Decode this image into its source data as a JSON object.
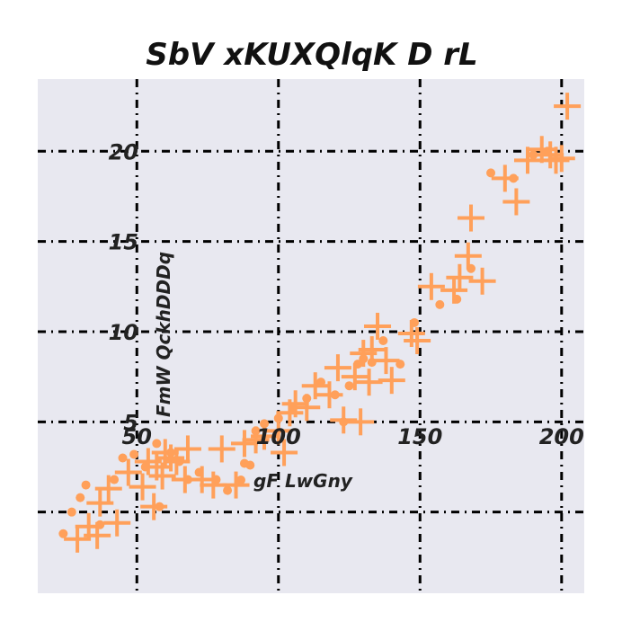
{
  "chart_data": {
    "type": "scatter",
    "title": "SbV xKUXQlqK  D rL",
    "xlabel": "",
    "ylabel": "FmW QckhDDDq",
    "xlim": [
      15,
      208
    ],
    "ylim": [
      -4.5,
      24
    ],
    "xticks": [
      50,
      100,
      150,
      200
    ],
    "yticks": [
      5,
      10,
      15,
      20
    ],
    "xtick_labels": [
      "50",
      "100",
      "150",
      "200"
    ],
    "ytick_labels": [
      "5",
      "10",
      "15",
      "20"
    ],
    "grid": true,
    "legend": {
      "placement": "center",
      "entries": [
        "gF LwGny"
      ]
    },
    "colors": {
      "series": "#FFA05A",
      "background": "#E8E8F0",
      "grid": "#000000"
    },
    "series": [
      {
        "name": "gF LwGny",
        "marker": "dot",
        "x": [
          24,
          27,
          30,
          32,
          37,
          42,
          45,
          49,
          53,
          57,
          58,
          62,
          65,
          68,
          72,
          78,
          82,
          88,
          90,
          92,
          95,
          100,
          105,
          110,
          115,
          120,
          123,
          125,
          128,
          130,
          133,
          137,
          143,
          148,
          157,
          163,
          168,
          175,
          183,
          190,
          195
        ],
        "y": [
          -1.2,
          0,
          0.8,
          1.5,
          -0.7,
          1.8,
          3.0,
          3.2,
          2.5,
          3.8,
          0.3,
          3.3,
          2.8,
          1.8,
          2.2,
          1.8,
          1.2,
          2.7,
          2.6,
          4.5,
          4.9,
          5.2,
          5.7,
          6.3,
          7.2,
          6.5,
          5.0,
          7.0,
          8.2,
          8.5,
          8.3,
          9.5,
          8.2,
          10.5,
          11.5,
          11.8,
          13.5,
          18.8,
          18.5,
          19.8,
          20.0
        ]
      },
      {
        "name": "",
        "marker": "plus",
        "x": [
          29,
          33,
          36,
          37,
          40,
          43,
          47,
          52,
          54,
          56,
          57,
          59,
          60,
          62,
          64,
          67,
          68,
          73,
          77,
          80,
          85,
          88,
          92,
          95,
          100,
          102,
          104,
          106,
          110,
          113,
          118,
          121,
          123,
          127,
          129,
          130,
          132,
          133,
          135,
          138,
          140,
          147,
          149,
          154,
          162,
          164,
          167,
          168,
          172,
          180,
          184,
          188,
          193,
          196,
          198,
          200,
          202
        ],
        "y": [
          -1.5,
          -0.8,
          -1.3,
          0.5,
          1.3,
          -0.6,
          2.2,
          1.4,
          2.8,
          0.3,
          2.5,
          2.0,
          3.3,
          3.0,
          2.8,
          1.8,
          3.5,
          1.8,
          1.5,
          3.5,
          1.5,
          3.8,
          4.0,
          4.2,
          4.5,
          3.3,
          5.5,
          6.0,
          5.8,
          7.0,
          6.5,
          8.0,
          5.1,
          7.5,
          5.0,
          8.8,
          7.2,
          9.0,
          10.3,
          8.4,
          7.3,
          9.9,
          9.5,
          12.5,
          12.3,
          13.0,
          14.2,
          16.3,
          12.8,
          18.5,
          17.2,
          19.5,
          20.1,
          19.8,
          19.5,
          19.6,
          22.5
        ]
      }
    ]
  }
}
